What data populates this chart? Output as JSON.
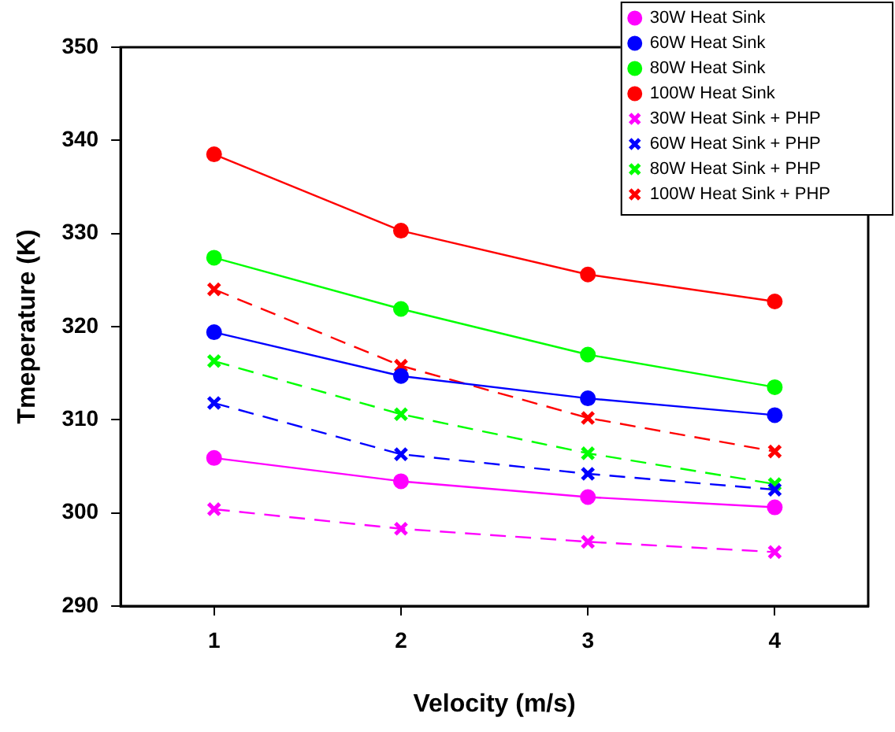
{
  "chart_data": {
    "type": "line",
    "xlabel": "Velocity (m/s)",
    "ylabel": "Tmeperature (K)",
    "x": [
      1,
      2,
      3,
      4
    ],
    "xlim": [
      0.5,
      4.5
    ],
    "xticks": [
      1,
      2,
      3,
      4
    ],
    "ylim": [
      290,
      350
    ],
    "yticks": [
      290,
      300,
      310,
      320,
      330,
      340,
      350
    ],
    "grid": false,
    "legend": "top right",
    "series": [
      {
        "name": "30W Heat Sink",
        "color": "#ff00ff",
        "marker": "circle",
        "line_style": "solid",
        "values": [
          305.9,
          303.4,
          301.7,
          300.6
        ]
      },
      {
        "name": "60W Heat Sink",
        "color": "#0000ff",
        "marker": "circle",
        "line_style": "solid",
        "values": [
          319.4,
          314.7,
          312.3,
          310.5
        ]
      },
      {
        "name": "80W Heat Sink",
        "color": "#00ff00",
        "marker": "circle",
        "line_style": "solid",
        "values": [
          327.4,
          321.9,
          317.0,
          313.5
        ]
      },
      {
        "name": "100W Heat Sink",
        "color": "#ff0000",
        "marker": "circle",
        "line_style": "solid",
        "values": [
          338.5,
          330.3,
          325.6,
          322.7
        ]
      },
      {
        "name": "30W Heat Sink + PHP",
        "color": "#ff00ff",
        "marker": "cross",
        "line_style": "dashed",
        "values": [
          300.4,
          298.3,
          296.9,
          295.8
        ]
      },
      {
        "name": "60W Heat Sink + PHP",
        "color": "#0000ff",
        "marker": "cross",
        "line_style": "dashed",
        "values": [
          311.8,
          306.3,
          304.2,
          302.5
        ]
      },
      {
        "name": "80W Heat Sink + PHP",
        "color": "#00ff00",
        "marker": "cross",
        "line_style": "dashed",
        "values": [
          316.3,
          310.6,
          306.4,
          303.1
        ]
      },
      {
        "name": "100W Heat Sink + PHP",
        "color": "#ff0000",
        "marker": "cross",
        "line_style": "dashed",
        "values": [
          324.0,
          315.8,
          310.2,
          306.6
        ]
      }
    ]
  }
}
